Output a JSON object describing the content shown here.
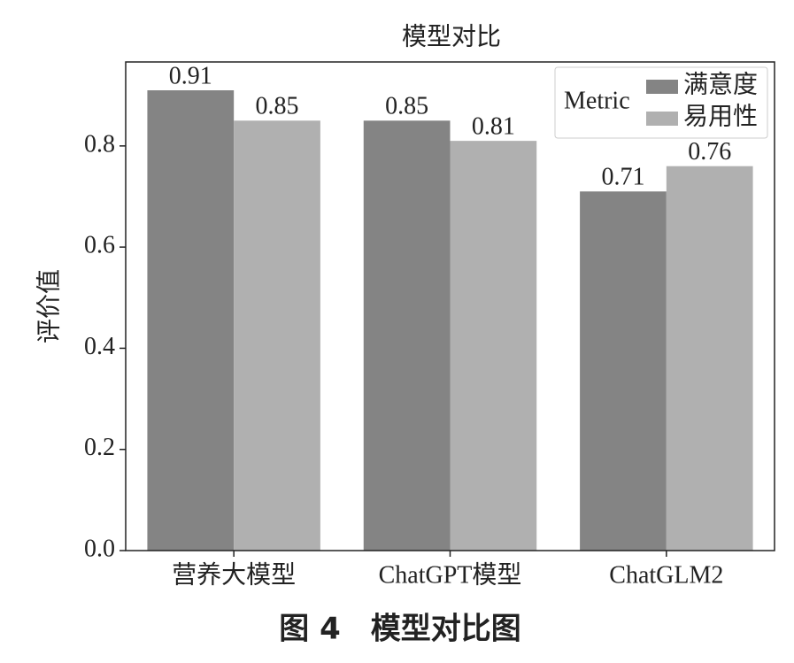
{
  "chart_data": {
    "type": "bar",
    "title": "模型对比",
    "caption": "图 4　模型对比图",
    "y_label": "评价值",
    "categories": [
      "营养大模型",
      "ChatGPT模型",
      "ChatGLM2"
    ],
    "series": [
      {
        "name": "满意度",
        "color": "#848484",
        "values": [
          0.91,
          0.85,
          0.71
        ]
      },
      {
        "name": "易用性",
        "color": "#b0b0b0",
        "values": [
          0.85,
          0.81,
          0.76
        ]
      }
    ],
    "ylim": [
      0,
      0.966
    ],
    "yticks": [
      {
        "value": 0,
        "label": "0.0"
      },
      0.2,
      0.4,
      0.6,
      0.8
    ],
    "legend": "upper right",
    "legend_title": "Metric"
  }
}
